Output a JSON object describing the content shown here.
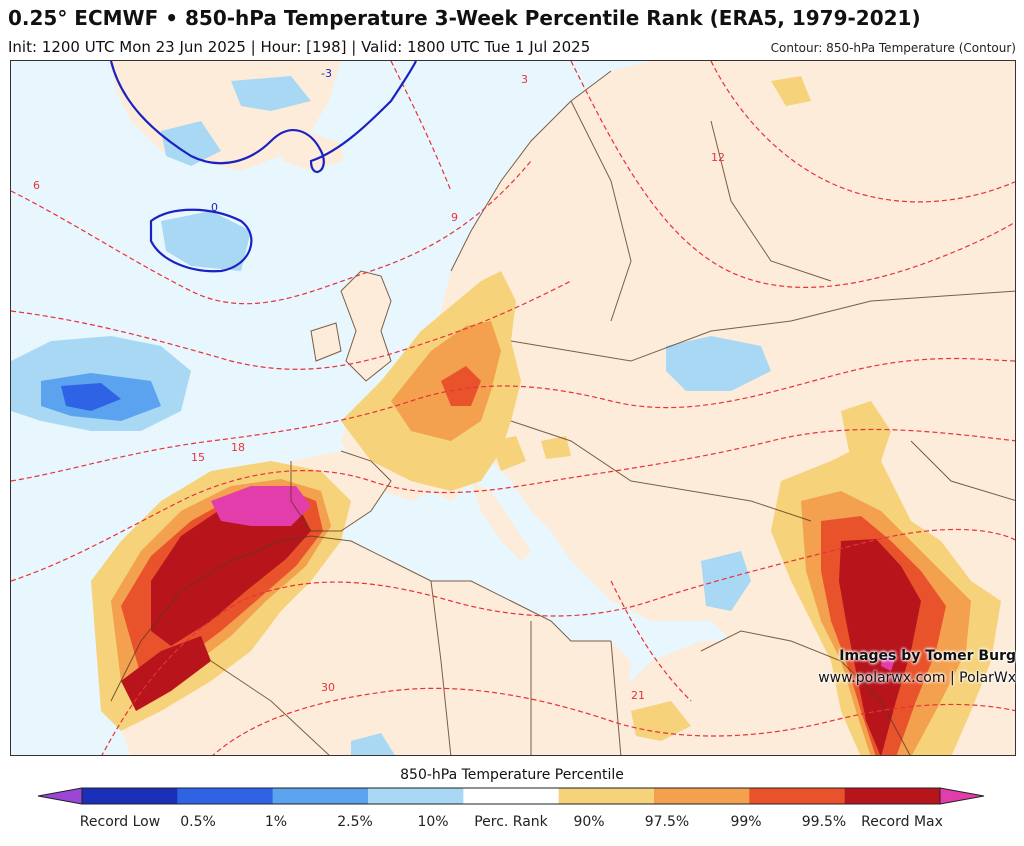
{
  "header": {
    "title": "0.25° ECMWF • 850-hPa Temperature 3-Week Percentile Rank (ERA5, 1979-2021)",
    "subtitle": "Init: 1200 UTC Mon 23 Jun 2025 | Hour: [198] | Valid: 1800 UTC Tue 1 Jul 2025",
    "contour_note": "Contour: 850-hPa Temperature (Contour)"
  },
  "map": {
    "contour_labels": [
      "-3",
      "0",
      "3",
      "6",
      "9",
      "12",
      "15",
      "18",
      "21",
      "30"
    ],
    "colors": {
      "ocean": "#e8f7fd",
      "land": "#fcecd9",
      "contour_warm": "#e8323a",
      "contour_cold": "#1b22c4",
      "border": "#5b3a1f"
    }
  },
  "credit": {
    "line1": "Images by Tomer Burg",
    "line2": "www.polarwx.com | PolarWx"
  },
  "legend": {
    "title": "850-hPa Temperature Percentile",
    "colors": [
      "#9b47d6",
      "#1b2fb8",
      "#2f63e6",
      "#5ba3ef",
      "#a9d8f5",
      "#ffffff",
      "#f6d27a",
      "#f3a04f",
      "#e8532b",
      "#b8141c",
      "#e23dab"
    ],
    "labels": [
      "Record Low",
      "0.5%",
      "1%",
      "2.5%",
      "10%",
      "Perc. Rank",
      "90%",
      "97.5%",
      "99%",
      "99.5%",
      "Record Max"
    ]
  }
}
